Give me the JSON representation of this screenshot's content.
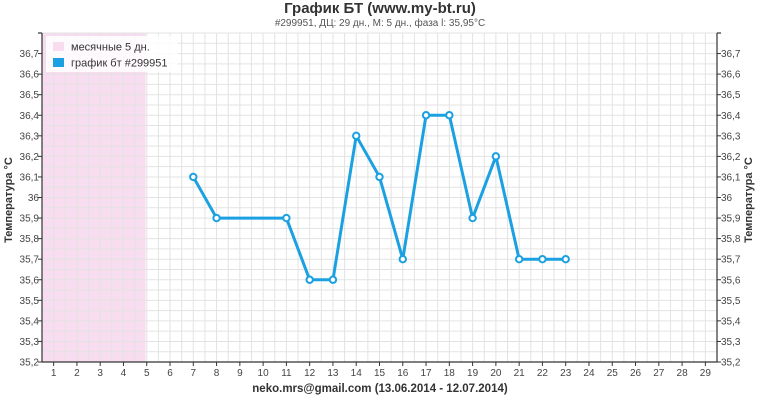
{
  "chart_data": {
    "type": "line",
    "title": "График БТ (www.my-bt.ru)",
    "subtitle": "#299951, ДЦ: 29 дн., М: 5 дн., фаза l: 35,95°С",
    "xlabel": "neko.mrs@gmail.com (13.06.2014 - 12.07.2014)",
    "ylabel": "Температура °С",
    "ylabel_right": "Температура °С",
    "categories": [
      1,
      2,
      3,
      4,
      5,
      6,
      7,
      8,
      9,
      10,
      11,
      12,
      13,
      14,
      15,
      16,
      17,
      18,
      19,
      20,
      21,
      22,
      23,
      24,
      25,
      26,
      27,
      28,
      29
    ],
    "ylim": [
      35.2,
      36.8
    ],
    "yticks": [
      "35,2",
      "35,3",
      "35,4",
      "35,5",
      "35,6",
      "35,7",
      "35,8",
      "35,9",
      "36",
      "36,1",
      "36,2",
      "36,3",
      "36,4",
      "36,5",
      "36,6",
      "36,7"
    ],
    "grid": true,
    "legend_position": "top-left",
    "menstruation": {
      "name": "месячные 5 дн.",
      "from_day": 1,
      "to_day": 5,
      "color": "#f8dcef"
    },
    "series": [
      {
        "name": "график бт #299951",
        "color": "#1ba1e2",
        "x": [
          7,
          8,
          11,
          12,
          13,
          14,
          15,
          16,
          17,
          18,
          19,
          20,
          21,
          22,
          23
        ],
        "values": [
          36.1,
          35.9,
          35.9,
          35.6,
          35.6,
          36.3,
          36.1,
          35.7,
          36.4,
          36.4,
          35.9,
          36.2,
          35.7,
          35.7,
          35.7
        ]
      }
    ]
  }
}
